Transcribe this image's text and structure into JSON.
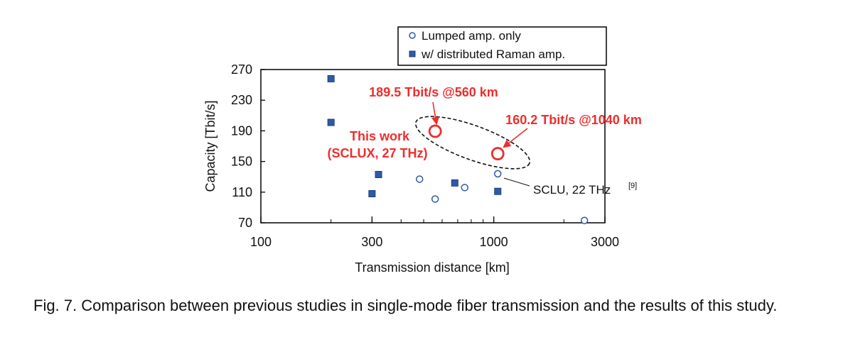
{
  "chart_data": {
    "type": "scatter",
    "xlabel": "Transmission distance [km]",
    "ylabel": "Capacity [Tbit/s]",
    "xscale": "log",
    "xlim": [
      100,
      3000
    ],
    "ylim": [
      70,
      270
    ],
    "xticks": [
      100,
      300,
      1000,
      3000
    ],
    "yticks": [
      70,
      110,
      150,
      190,
      230,
      270
    ],
    "legend": {
      "position": "top-right"
    },
    "series": [
      {
        "name": "Lumped amp. only",
        "marker": "open-circle",
        "color": "#2a5aa8",
        "points": [
          {
            "x": 480,
            "y": 127
          },
          {
            "x": 560,
            "y": 101
          },
          {
            "x": 750,
            "y": 116
          },
          {
            "x": 1040,
            "y": 134
          },
          {
            "x": 2450,
            "y": 73
          }
        ]
      },
      {
        "name": "w/ distributed Raman amp.",
        "marker": "filled-square",
        "color": "#2f5aa8",
        "points": [
          {
            "x": 200,
            "y": 258
          },
          {
            "x": 200,
            "y": 201
          },
          {
            "x": 300,
            "y": 108
          },
          {
            "x": 320,
            "y": 133
          },
          {
            "x": 680,
            "y": 122
          },
          {
            "x": 1040,
            "y": 111
          }
        ]
      },
      {
        "name": "This work",
        "marker": "red-circle",
        "color": "#ee2d2d",
        "points": [
          {
            "x": 560,
            "y": 189.5
          },
          {
            "x": 1040,
            "y": 160.2
          }
        ]
      }
    ],
    "annotations": {
      "a560": "189.5 Tbit/s @560 km",
      "a1040": "160.2 Tbit/s @1040 km",
      "this_work_line1": "This work",
      "this_work_line2": "(SCLUX, 27 THz)",
      "sclu_main": "SCLU, 22 THz",
      "sclu_ref": "[9]"
    }
  },
  "caption": "Fig. 7.   Comparison between previous studies in single-mode fiber transmission and the results of this study."
}
